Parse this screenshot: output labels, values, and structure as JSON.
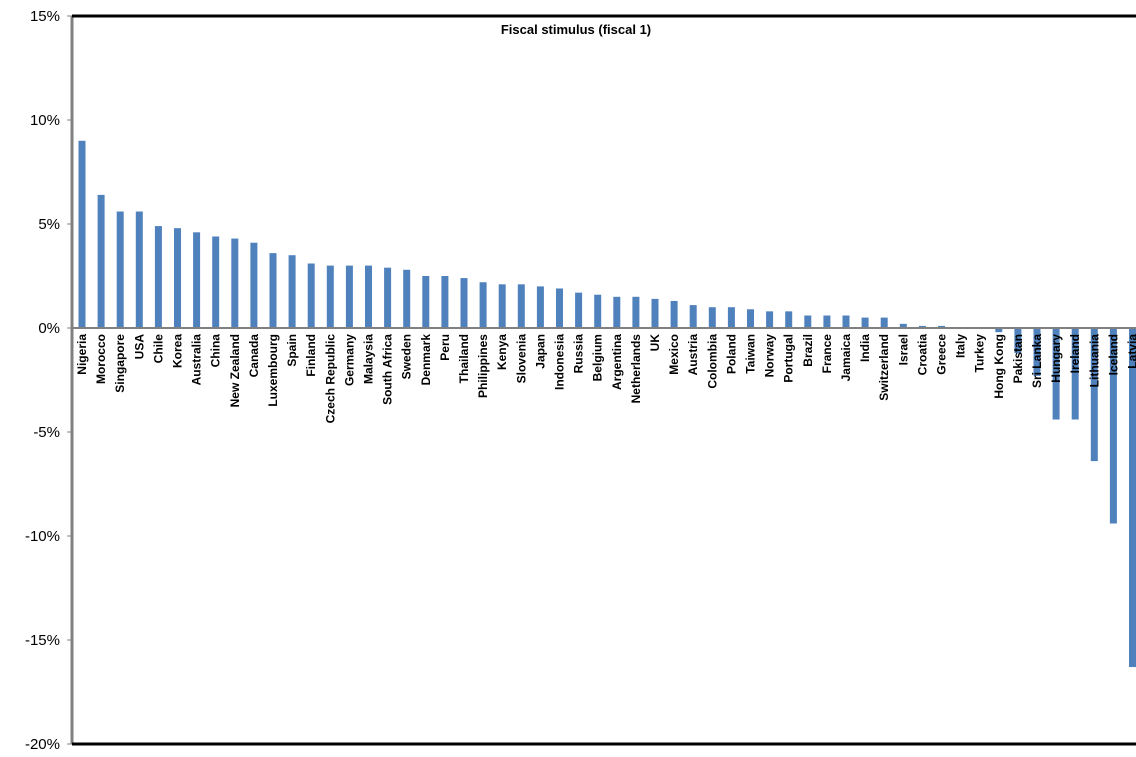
{
  "chart_data": {
    "type": "bar",
    "title": "Fiscal stimulus (fiscal 1)",
    "xlabel": "",
    "ylabel": "",
    "ylim": [
      -0.2,
      0.15
    ],
    "yticks": [
      "15%",
      "10%",
      "5%",
      "0%",
      "-5%",
      "-10%",
      "-15%",
      "-20%"
    ],
    "ytick_values": [
      0.15,
      0.1,
      0.05,
      0.0,
      -0.05,
      -0.1,
      -0.15,
      -0.2
    ],
    "grid": false,
    "legend": "none",
    "bar_color": "#4F81BD",
    "categories": [
      "Nigeria",
      "Morocco",
      "Singapore",
      "USA",
      "Chile",
      "Korea",
      "Australia",
      "China",
      "New Zealand",
      "Canada",
      "Luxembourg",
      "Spain",
      "Finland",
      "Czech Republic",
      "Germany",
      "Malaysia",
      "South Africa",
      "Sweden",
      "Denmark",
      "Peru",
      "Thailand",
      "Philippines",
      "Kenya",
      "Slovenia",
      "Japan",
      "Indonesia",
      "Russia",
      "Belgium",
      "Argentina",
      "Netherlands",
      "UK",
      "Mexico",
      "Austria",
      "Colombia",
      "Poland",
      "Taiwan",
      "Norway",
      "Portugal",
      "Brazil",
      "France",
      "Jamaica",
      "India",
      "Switzerland",
      "Israel",
      "Croatia",
      "Greece",
      "Italy",
      "Turkey",
      "Hong Kong",
      "Pakistan",
      "Sri Lanka",
      "Hungary",
      "Ireland",
      "Lithuania",
      "Iceland",
      "Latvia"
    ],
    "values": [
      0.09,
      0.064,
      0.056,
      0.056,
      0.049,
      0.048,
      0.046,
      0.044,
      0.043,
      0.041,
      0.036,
      0.035,
      0.031,
      0.03,
      0.03,
      0.03,
      0.029,
      0.028,
      0.025,
      0.025,
      0.024,
      0.022,
      0.021,
      0.021,
      0.02,
      0.019,
      0.017,
      0.016,
      0.015,
      0.015,
      0.014,
      0.013,
      0.011,
      0.01,
      0.01,
      0.009,
      0.008,
      0.008,
      0.006,
      0.006,
      0.006,
      0.005,
      0.005,
      0.002,
      0.001,
      0.001,
      0.0,
      0.0,
      -0.002,
      -0.012,
      -0.023,
      -0.044,
      -0.044,
      -0.064,
      -0.094,
      -0.163
    ]
  }
}
